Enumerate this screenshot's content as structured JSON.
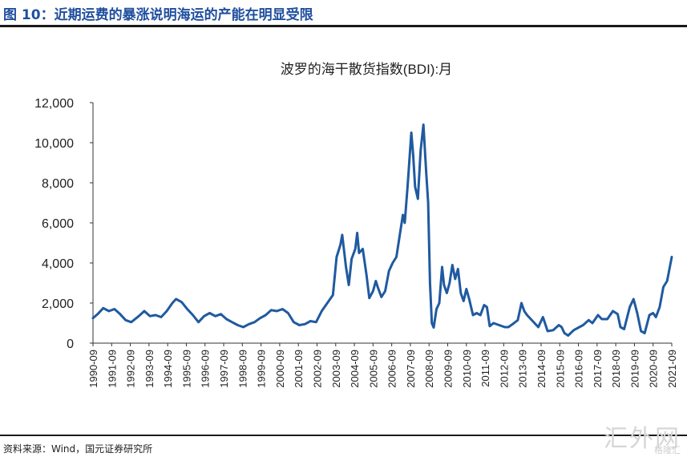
{
  "header": {
    "figure_title": "图 10：近期运费的暴涨说明海运的产能在明显受限"
  },
  "footer": {
    "source": "资料来源：Wind，国元证券研究所"
  },
  "watermark": {
    "text": "汇外网",
    "subtext": "格隆汇"
  },
  "colors": {
    "title_blue": "#1F4E9E",
    "series_line": "#1F5AA0",
    "axis": "#333333"
  },
  "chart_data": {
    "type": "line",
    "title": "波罗的海干散货指数(BDI):月",
    "xlabel": "",
    "ylabel": "",
    "ylim": [
      0,
      12000
    ],
    "yticks": [
      "0",
      "2,000",
      "4,000",
      "6,000",
      "8,000",
      "10,000",
      "12,000"
    ],
    "ytick_values": [
      0,
      2000,
      4000,
      6000,
      8000,
      10000,
      12000
    ],
    "xticks": [
      "1990-09",
      "1991-09",
      "1992-09",
      "1993-09",
      "1994-09",
      "1995-09",
      "1996-09",
      "1997-09",
      "1998-09",
      "1999-09",
      "2000-09",
      "2001-09",
      "2002-09",
      "2003-09",
      "2004-09",
      "2005-09",
      "2006-09",
      "2007-09",
      "2008-09",
      "2009-09",
      "2010-09",
      "2011-09",
      "2012-09",
      "2013-09",
      "2014-09",
      "2015-09",
      "2016-09",
      "2017-09",
      "2018-09",
      "2019-09",
      "2020-09",
      "2021-09"
    ],
    "xtick_values": [
      1990.75,
      1991.75,
      1992.75,
      1993.75,
      1994.75,
      1995.75,
      1996.75,
      1997.75,
      1998.75,
      1999.75,
      2000.75,
      2001.75,
      2002.75,
      2003.75,
      2004.75,
      2005.75,
      2006.75,
      2007.75,
      2008.75,
      2009.75,
      2010.75,
      2011.75,
      2012.75,
      2013.75,
      2014.75,
      2015.75,
      2016.75,
      2017.75,
      2018.75,
      2019.75,
      2020.75,
      2021.75
    ],
    "xlim": [
      1990.75,
      2021.75
    ],
    "grid": false,
    "legend": "none",
    "series": [
      {
        "color": "#1F5AA0",
        "points": [
          [
            1990.75,
            1250
          ],
          [
            1991.0,
            1450
          ],
          [
            1991.3,
            1750
          ],
          [
            1991.6,
            1600
          ],
          [
            1991.9,
            1700
          ],
          [
            1992.2,
            1450
          ],
          [
            1992.5,
            1150
          ],
          [
            1992.8,
            1050
          ],
          [
            1993.2,
            1350
          ],
          [
            1993.5,
            1600
          ],
          [
            1993.8,
            1350
          ],
          [
            1994.1,
            1400
          ],
          [
            1994.4,
            1300
          ],
          [
            1994.7,
            1600
          ],
          [
            1995.0,
            2000
          ],
          [
            1995.2,
            2200
          ],
          [
            1995.5,
            2050
          ],
          [
            1995.8,
            1700
          ],
          [
            1996.1,
            1400
          ],
          [
            1996.4,
            1050
          ],
          [
            1996.7,
            1350
          ],
          [
            1997.0,
            1500
          ],
          [
            1997.3,
            1350
          ],
          [
            1997.6,
            1450
          ],
          [
            1997.9,
            1200
          ],
          [
            1998.2,
            1050
          ],
          [
            1998.5,
            900
          ],
          [
            1998.8,
            800
          ],
          [
            1999.1,
            950
          ],
          [
            1999.4,
            1050
          ],
          [
            1999.7,
            1250
          ],
          [
            2000.0,
            1400
          ],
          [
            2000.3,
            1650
          ],
          [
            2000.6,
            1600
          ],
          [
            2000.9,
            1700
          ],
          [
            2001.2,
            1500
          ],
          [
            2001.5,
            1050
          ],
          [
            2001.8,
            900
          ],
          [
            2002.1,
            950
          ],
          [
            2002.4,
            1100
          ],
          [
            2002.7,
            1050
          ],
          [
            2003.0,
            1600
          ],
          [
            2003.3,
            2000
          ],
          [
            2003.6,
            2400
          ],
          [
            2003.8,
            4300
          ],
          [
            2004.0,
            4900
          ],
          [
            2004.1,
            5400
          ],
          [
            2004.3,
            3800
          ],
          [
            2004.45,
            2900
          ],
          [
            2004.6,
            4200
          ],
          [
            2004.8,
            4700
          ],
          [
            2004.9,
            5500
          ],
          [
            2005.0,
            4500
          ],
          [
            2005.2,
            4700
          ],
          [
            2005.4,
            3400
          ],
          [
            2005.55,
            2250
          ],
          [
            2005.75,
            2600
          ],
          [
            2005.9,
            3100
          ],
          [
            2006.0,
            2800
          ],
          [
            2006.2,
            2300
          ],
          [
            2006.4,
            2600
          ],
          [
            2006.6,
            3600
          ],
          [
            2006.8,
            4000
          ],
          [
            2007.0,
            4300
          ],
          [
            2007.2,
            5500
          ],
          [
            2007.35,
            6400
          ],
          [
            2007.45,
            6000
          ],
          [
            2007.6,
            7800
          ],
          [
            2007.8,
            10500
          ],
          [
            2007.9,
            9400
          ],
          [
            2008.0,
            7800
          ],
          [
            2008.15,
            7200
          ],
          [
            2008.3,
            9600
          ],
          [
            2008.45,
            10900
          ],
          [
            2008.6,
            8500
          ],
          [
            2008.7,
            7000
          ],
          [
            2008.8,
            3000
          ],
          [
            2008.9,
            1000
          ],
          [
            2009.0,
            780
          ],
          [
            2009.15,
            1700
          ],
          [
            2009.3,
            2000
          ],
          [
            2009.45,
            3800
          ],
          [
            2009.55,
            2900
          ],
          [
            2009.7,
            2500
          ],
          [
            2009.85,
            3000
          ],
          [
            2010.0,
            3900
          ],
          [
            2010.15,
            3200
          ],
          [
            2010.3,
            3700
          ],
          [
            2010.45,
            2500
          ],
          [
            2010.6,
            2100
          ],
          [
            2010.75,
            2700
          ],
          [
            2010.9,
            2200
          ],
          [
            2011.1,
            1400
          ],
          [
            2011.3,
            1500
          ],
          [
            2011.5,
            1400
          ],
          [
            2011.7,
            1900
          ],
          [
            2011.85,
            1800
          ],
          [
            2012.0,
            850
          ],
          [
            2012.2,
            1000
          ],
          [
            2012.5,
            900
          ],
          [
            2012.8,
            800
          ],
          [
            2013.0,
            800
          ],
          [
            2013.3,
            1000
          ],
          [
            2013.5,
            1150
          ],
          [
            2013.7,
            2000
          ],
          [
            2013.85,
            1600
          ],
          [
            2014.0,
            1400
          ],
          [
            2014.3,
            1100
          ],
          [
            2014.6,
            800
          ],
          [
            2014.85,
            1300
          ],
          [
            2015.1,
            600
          ],
          [
            2015.4,
            650
          ],
          [
            2015.7,
            900
          ],
          [
            2015.85,
            800
          ],
          [
            2016.0,
            500
          ],
          [
            2016.2,
            380
          ],
          [
            2016.5,
            650
          ],
          [
            2016.8,
            800
          ],
          [
            2017.0,
            900
          ],
          [
            2017.3,
            1150
          ],
          [
            2017.5,
            1000
          ],
          [
            2017.8,
            1400
          ],
          [
            2018.0,
            1200
          ],
          [
            2018.3,
            1200
          ],
          [
            2018.6,
            1600
          ],
          [
            2018.85,
            1450
          ],
          [
            2019.0,
            800
          ],
          [
            2019.2,
            700
          ],
          [
            2019.5,
            1800
          ],
          [
            2019.7,
            2200
          ],
          [
            2019.9,
            1500
          ],
          [
            2020.1,
            600
          ],
          [
            2020.3,
            500
          ],
          [
            2020.55,
            1400
          ],
          [
            2020.75,
            1500
          ],
          [
            2020.9,
            1300
          ],
          [
            2021.1,
            1800
          ],
          [
            2021.3,
            2800
          ],
          [
            2021.5,
            3100
          ],
          [
            2021.75,
            4300
          ]
        ]
      }
    ]
  }
}
